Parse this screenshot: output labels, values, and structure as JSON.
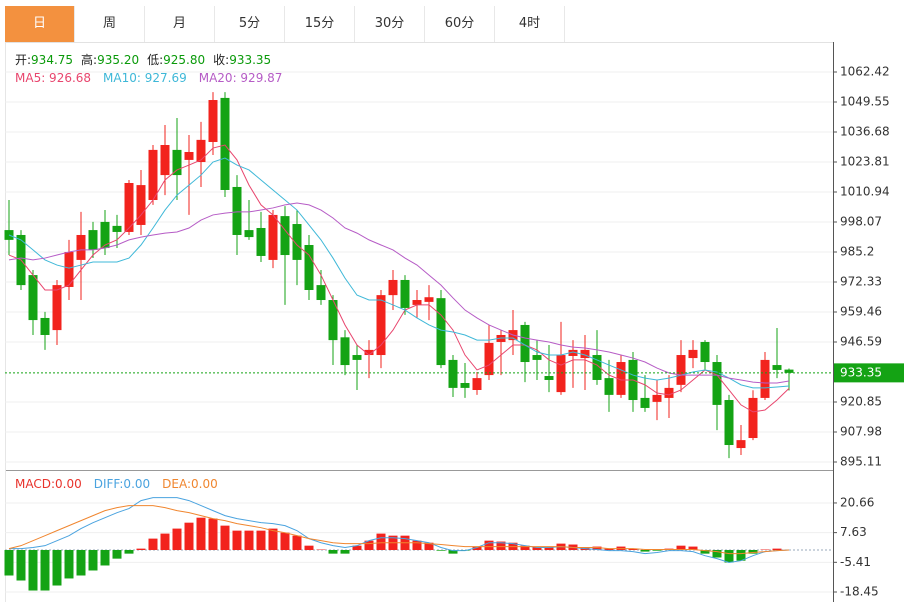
{
  "tabs": [
    "日",
    "周",
    "月",
    "5分",
    "15分",
    "30分",
    "60分",
    "4时"
  ],
  "active_tab": 0,
  "chart_data": [
    {
      "type": "candlestick",
      "info": [
        {
          "label": "开:",
          "value": "934.75"
        },
        {
          "label": "高:",
          "value": "935.20"
        },
        {
          "label": "低:",
          "value": "925.80"
        },
        {
          "label": "收:",
          "value": "933.35"
        }
      ],
      "info_color": "#0a9a0a",
      "up_color": "#f2231d",
      "down_color": "#14a314",
      "open": [
        994.6,
        992.5,
        975.3,
        956.9,
        951.7,
        970.2,
        981.8,
        994.6,
        998.1,
        996.4,
        993.8,
        996.8,
        1007.5,
        1018.2,
        1029.0,
        1024.7,
        1023.8,
        1032.4,
        1051.3,
        1013.1,
        994.6,
        995.5,
        981.8,
        1000.6,
        997.2,
        988.2,
        971.0,
        964.6,
        948.6,
        941.0,
        941.0,
        941.0,
        966.7,
        973.2,
        962.5,
        963.8,
        965.4,
        938.9,
        929.0,
        926.0,
        932.4,
        946.6,
        947.4,
        953.9,
        941.0,
        932.0,
        925.1,
        940.6,
        939.7,
        941.0,
        931.1,
        923.9,
        938.9,
        922.6,
        920.9,
        922.6,
        928.2,
        939.7,
        946.6,
        938.0,
        921.7,
        901.1,
        905.4,
        922.6,
        936.7,
        934.75
      ],
      "high": [
        1007.5,
        994.6,
        977.5,
        959.5,
        973.2,
        990.4,
        1002.4,
        998.1,
        1003.2,
        1001.1,
        1016.1,
        1020.4,
        1031.1,
        1039.7,
        1042.7,
        1035.4,
        1041.0,
        1053.8,
        1053.8,
        1018.2,
        1007.5,
        1002.4,
        1003.2,
        1004.9,
        1003.2,
        992.5,
        977.5,
        966.7,
        951.7,
        945.3,
        947.4,
        968.9,
        977.5,
        975.3,
        968.9,
        971.0,
        968.9,
        941.0,
        937.6,
        933.7,
        953.9,
        951.7,
        960.3,
        955.2,
        947.4,
        945.3,
        955.2,
        947.4,
        949.6,
        951.7,
        938.9,
        941.0,
        942.3,
        932.4,
        930.3,
        932.4,
        947.4,
        947.4,
        947.4,
        941.0,
        923.9,
        911.0,
        925.9,
        942.3,
        952.6,
        935.2
      ],
      "low": [
        983.9,
        968.9,
        949.6,
        943.2,
        945.3,
        964.6,
        964.6,
        982.6,
        983.9,
        986.9,
        992.5,
        992.5,
        1005.4,
        1009.6,
        1007.5,
        1001.1,
        1013.1,
        1026.8,
        1008.8,
        983.9,
        990.4,
        980.9,
        978.3,
        962.5,
        971.0,
        964.6,
        962.5,
        936.7,
        932.4,
        926.0,
        931.1,
        935.4,
        960.3,
        958.2,
        956.9,
        956.0,
        935.4,
        923.0,
        922.6,
        923.9,
        930.3,
        932.4,
        941.0,
        929.4,
        930.3,
        925.1,
        923.9,
        926.9,
        926.0,
        928.2,
        916.6,
        922.6,
        916.6,
        916.6,
        913.1,
        914.0,
        925.1,
        935.4,
        934.6,
        908.8,
        896.8,
        898.1,
        904.5,
        921.7,
        931.1,
        925.8
      ],
      "close": [
        990.4,
        971.0,
        956.0,
        949.6,
        971.0,
        985.2,
        992.5,
        986.1,
        986.9,
        993.8,
        1014.8,
        1013.9,
        1029.0,
        1031.1,
        1018.2,
        1028.1,
        1033.3,
        1050.4,
        1011.8,
        992.5,
        991.6,
        983.5,
        1001.1,
        983.9,
        981.8,
        968.9,
        964.6,
        947.4,
        936.7,
        938.9,
        943.2,
        966.7,
        973.2,
        961.2,
        964.6,
        965.8,
        936.7,
        926.9,
        926.9,
        931.1,
        946.2,
        949.6,
        951.7,
        938.0,
        938.9,
        930.3,
        941.0,
        943.2,
        943.2,
        930.3,
        923.9,
        938.0,
        921.7,
        918.3,
        923.9,
        926.9,
        941.0,
        943.2,
        938.0,
        919.6,
        902.4,
        904.5,
        922.6,
        938.9,
        934.6,
        933.35
      ],
      "ma_series": [
        {
          "label": "MA5: 926.68",
          "color": "#e8466e",
          "values": [
            983.9,
            981.8,
            975.3,
            968.9,
            968.9,
            971.0,
            977.5,
            983.9,
            988.2,
            990.4,
            995.5,
            1001.1,
            1007.5,
            1016.1,
            1020.4,
            1022.5,
            1024.7,
            1029.8,
            1031.1,
            1024.7,
            1013.9,
            1005.4,
            1001.1,
            994.6,
            988.2,
            983.9,
            975.3,
            964.6,
            953.9,
            945.3,
            941.0,
            945.3,
            951.7,
            960.3,
            962.5,
            962.5,
            958.2,
            951.7,
            941.0,
            934.6,
            936.7,
            941.0,
            945.3,
            945.3,
            943.2,
            938.9,
            936.7,
            938.9,
            938.9,
            936.7,
            932.4,
            930.3,
            930.3,
            928.2,
            924.7,
            923.9,
            926.0,
            930.3,
            934.6,
            932.4,
            926.0,
            919.6,
            916.6,
            917.4,
            921.7,
            926.68
          ]
        },
        {
          "label": "MA10: 927.69",
          "color": "#3fb8d8",
          "values": [
            992.5,
            990.4,
            986.1,
            981.8,
            979.6,
            978.3,
            979.6,
            980.9,
            980.9,
            980.9,
            982.6,
            988.2,
            995.5,
            1003.2,
            1009.6,
            1013.9,
            1018.2,
            1023.8,
            1025.5,
            1022.5,
            1020.4,
            1016.1,
            1011.8,
            1007.5,
            1003.2,
            996.8,
            990.4,
            982.6,
            974.0,
            966.7,
            964.6,
            964.6,
            962.5,
            960.3,
            956.9,
            953.9,
            951.7,
            950.9,
            949.6,
            947.4,
            947.4,
            948.3,
            948.3,
            945.3,
            942.3,
            941.0,
            941.0,
            942.3,
            941.0,
            938.9,
            936.7,
            934.6,
            932.4,
            931.1,
            930.3,
            931.1,
            932.4,
            933.7,
            934.6,
            933.7,
            931.1,
            928.2,
            926.9,
            926.9,
            927.3,
            927.69
          ]
        },
        {
          "label": "MA20: 929.87",
          "color": "#b65cc6",
          "values": [
            981.8,
            982.6,
            981.8,
            982.6,
            983.9,
            985.2,
            986.1,
            986.1,
            986.9,
            988.2,
            990.4,
            991.6,
            992.5,
            993.3,
            993.8,
            995.5,
            998.9,
            1001.1,
            1001.9,
            1002.4,
            1002.4,
            1003.2,
            1004.1,
            1005.4,
            1006.2,
            1005.4,
            1003.2,
            999.8,
            995.5,
            993.3,
            990.4,
            988.2,
            986.1,
            982.6,
            979.6,
            975.3,
            971.0,
            965.5,
            960.3,
            956.9,
            953.9,
            951.7,
            949.6,
            948.3,
            947.4,
            946.6,
            945.3,
            944.4,
            944.0,
            943.2,
            942.3,
            941.0,
            939.7,
            938.0,
            935.4,
            933.3,
            932.4,
            932.4,
            932.4,
            932.4,
            931.1,
            930.3,
            929.4,
            929.0,
            929.0,
            929.87
          ]
        }
      ],
      "ylim": [
        891.68,
        1074.0
      ],
      "yticks": [
        1062.42,
        1049.55,
        1036.68,
        1023.81,
        1010.94,
        998.07,
        985.2,
        972.33,
        959.46,
        946.59,
        920.85,
        907.98,
        895.11
      ],
      "yticks_labels_note_free": null,
      "last_price": 933.35,
      "last_price_color": "#14a314",
      "grid": true
    },
    {
      "type": "macd",
      "histogram": {
        "label": "MACD:0.00",
        "color": "#e8332c",
        "up_color": "#f2231d",
        "down_color": "#14a314",
        "values": [
          -11.2,
          -13.4,
          -17.8,
          -17.8,
          -15.6,
          -12.5,
          -11.2,
          -9.0,
          -6.8,
          -3.8,
          -1.6,
          0.6,
          5.0,
          7.2,
          9.4,
          12.0,
          14.2,
          13.8,
          10.7,
          8.5,
          8.5,
          8.5,
          9.4,
          7.6,
          6.3,
          1.9,
          0.2,
          -1.6,
          -1.6,
          1.9,
          4.1,
          7.2,
          6.3,
          6.3,
          4.1,
          3.2,
          -0.3,
          -1.6,
          -0.3,
          1.5,
          4.1,
          3.7,
          3.2,
          1.9,
          1.5,
          1.5,
          2.8,
          2.4,
          1.1,
          1.5,
          0.6,
          1.5,
          0.6,
          -0.7,
          -0.3,
          0.6,
          1.9,
          1.5,
          -1.6,
          -3.3,
          -5.5,
          -4.7,
          -1.6,
          0.2,
          0.6,
          0
        ]
      },
      "series": [
        {
          "label": "DIFF:0.00",
          "color": "#4aa3df",
          "values": [
            0.6,
            0.6,
            1.1,
            1.9,
            4.1,
            6.3,
            9.4,
            12.0,
            14.2,
            16.4,
            18.2,
            21.7,
            23.0,
            23.0,
            23.0,
            21.7,
            19.5,
            17.3,
            15.1,
            13.8,
            12.9,
            12.0,
            11.6,
            10.7,
            8.5,
            5.0,
            3.2,
            1.9,
            1.1,
            1.9,
            4.1,
            5.4,
            5.4,
            5.0,
            4.1,
            3.2,
            1.1,
            -0.3,
            -0.3,
            1.1,
            3.2,
            3.2,
            2.8,
            1.9,
            1.1,
            1.1,
            1.5,
            1.1,
            0.6,
            0.2,
            -0.3,
            -0.3,
            -0.7,
            -1.6,
            -1.1,
            -0.3,
            -0.3,
            -0.7,
            -2.5,
            -3.8,
            -5.5,
            -4.7,
            -2.5,
            -0.7,
            -0.3,
            0
          ]
        },
        {
          "label": "DEA:0.00",
          "color": "#f0862f",
          "values": [
            0.6,
            1.9,
            4.1,
            6.3,
            8.5,
            10.7,
            12.9,
            15.1,
            17.3,
            18.6,
            19.5,
            19.5,
            19.5,
            18.6,
            17.3,
            16.4,
            15.1,
            13.8,
            12.9,
            11.6,
            10.7,
            9.8,
            8.5,
            7.6,
            6.3,
            5.0,
            4.1,
            3.2,
            2.8,
            2.8,
            2.8,
            3.2,
            3.2,
            3.2,
            3.2,
            2.8,
            2.4,
            1.9,
            1.5,
            1.5,
            1.5,
            1.5,
            1.5,
            1.5,
            1.5,
            1.5,
            1.5,
            1.1,
            1.1,
            1.1,
            0.6,
            0.6,
            0.6,
            0.2,
            0.2,
            0.2,
            0.2,
            0.2,
            -0.3,
            -0.7,
            -1.6,
            -1.6,
            -1.1,
            -0.7,
            -0.3,
            0
          ]
        }
      ],
      "ylim": [
        -22.84,
        32.94
      ],
      "yticks": [
        20.66,
        7.63,
        -5.41,
        -18.45
      ],
      "grid": true
    }
  ]
}
